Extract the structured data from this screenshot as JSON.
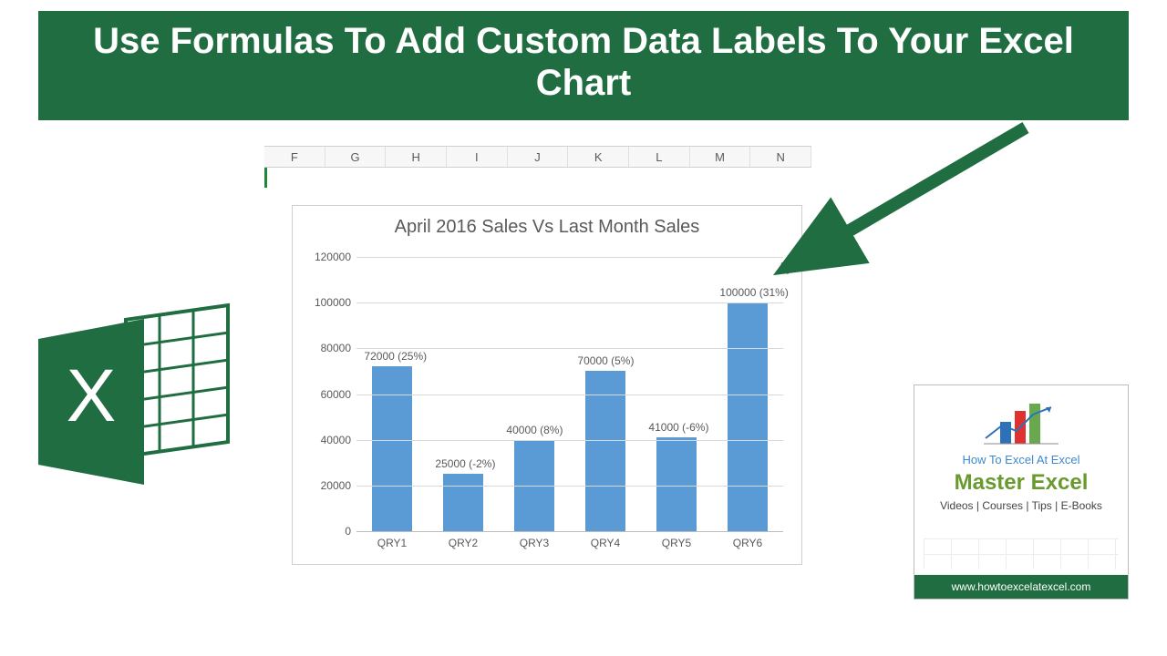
{
  "banner": {
    "title": "Use Formulas To Add Custom Data Labels To Your Excel Chart",
    "bg": "#1f6d41",
    "fg": "#ffffff",
    "fontsize": 40
  },
  "column_headers": [
    "F",
    "G",
    "H",
    "I",
    "J",
    "K",
    "L",
    "M",
    "N"
  ],
  "chart": {
    "type": "bar",
    "title": "April 2016 Sales Vs Last Month Sales",
    "title_color": "#595959",
    "title_fontsize": 20,
    "categories": [
      "QRY1",
      "QRY2",
      "QRY3",
      "QRY4",
      "QRY5",
      "QRY6"
    ],
    "values": [
      72000,
      25000,
      40000,
      70000,
      41000,
      100000
    ],
    "data_labels": [
      "72000 (25%)",
      "25000 (-2%)",
      "40000 (8%)",
      "70000 (5%)",
      "41000 (-6%)",
      "100000 (31%)"
    ],
    "bar_color": "#5b9bd5",
    "ylim": [
      0,
      120000
    ],
    "ytick_step": 20000,
    "yticks": [
      0,
      20000,
      40000,
      60000,
      80000,
      100000,
      120000
    ],
    "grid_color": "#d9d9d9",
    "axis_text_color": "#595959",
    "background_color": "#ffffff",
    "label_fontsize": 12,
    "bar_width": 0.56
  },
  "arrow": {
    "color": "#1f6d41"
  },
  "excel_icon": {
    "primary": "#1f6d41",
    "accent": "#3aa35a"
  },
  "promo": {
    "brand": "How To Excel At Excel",
    "headline": "Master Excel",
    "subline": "Videos | Courses | Tips | E-Books",
    "url": "www.howtoexcelatexcel.com",
    "brand_color": "#3d89c9",
    "headline_color": "#6a9a2f",
    "footer_bg": "#1f6d41",
    "mini_bars": [
      "#2d72b8",
      "#e03131",
      "#6aa84f"
    ]
  }
}
